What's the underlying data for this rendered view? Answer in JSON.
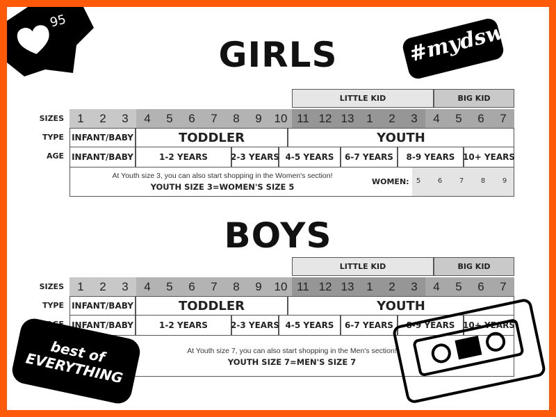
{
  "badge": {
    "icon": "heart-icon",
    "count": "95"
  },
  "hashtag": "#mydsw",
  "logo_text": "best of EVERYTHING",
  "colors": {
    "border": "#ff5a0a",
    "little_kid": "#e6e6e6",
    "big_kid": "#c9c9c9",
    "infant": "#c8c8c8",
    "toddler": "#b3b3b3",
    "little_kid_sizes": "#969696",
    "big_kid_sizes": "#a8a8a8"
  },
  "row_labels": {
    "sizes": "SIZES",
    "type": "TYPE",
    "age": "AGE"
  },
  "groups": {
    "little_kid": "LITTLE KID",
    "big_kid": "BIG KID"
  },
  "sizes": [
    "1",
    "2",
    "3",
    "4",
    "5",
    "6",
    "7",
    "8",
    "9",
    "10",
    "11",
    "12",
    "13",
    "1",
    "2",
    "3",
    "4",
    "5",
    "6",
    "7"
  ],
  "types": [
    "INFANT/BABY",
    "TODDLER",
    "YOUTH"
  ],
  "ages": [
    "INFANT/BABY",
    "1-2 YEARS",
    "2-3 YEARS",
    "4-5 YEARS",
    "6-7 YEARS",
    "8-9 YEARS",
    "10+ YEARS"
  ],
  "girls": {
    "title": "GIRLS",
    "note": "At Youth size 3, you can also start shopping in the Women's section!",
    "note_bold": "YOUTH SIZE 3=WOMEN'S SIZE 5",
    "women_label": "WOMEN:",
    "women_sizes": [
      "5",
      "6",
      "7",
      "8",
      "9"
    ]
  },
  "boys": {
    "title": "BOYS",
    "note": "At Youth size 7, you can also start shopping in the Men's section!",
    "note_bold": "YOUTH SIZE 7=MEN'S SIZE 7"
  }
}
